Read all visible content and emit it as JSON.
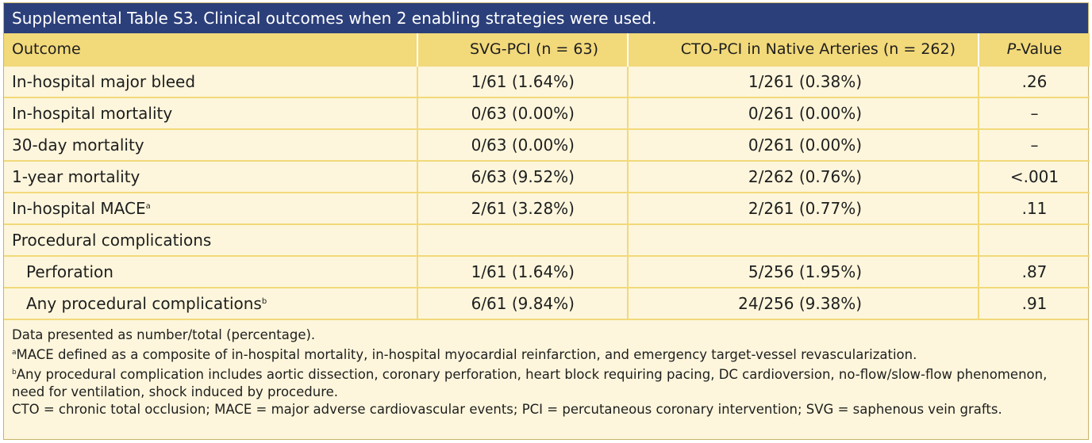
{
  "title": "Supplemental Table S3. Clinical outcomes when 2 enabling strategies were used.",
  "headers": {
    "outcome": "Outcome",
    "svg": "SVG-PCI (n = 63)",
    "cto": "CTO-PCI in Native Arteries (n = 262)",
    "p_italic": "P",
    "p_rest": "-Value"
  },
  "rows": [
    {
      "label": "In-hospital major bleed",
      "sup": "",
      "svg": "1/61 (1.64%)",
      "cto": "1/261 (0.38%)",
      "p": ".26"
    },
    {
      "label": "In-hospital mortality",
      "sup": "",
      "svg": "0/63 (0.00%)",
      "cto": "0/261 (0.00%)",
      "p": "–"
    },
    {
      "label": "30-day mortality",
      "sup": "",
      "svg": "0/63 (0.00%)",
      "cto": "0/261 (0.00%)",
      "p": "–"
    },
    {
      "label": "1-year mortality",
      "sup": "",
      "svg": "6/63 (9.52%)",
      "cto": "2/262 (0.76%)",
      "p": "<.001"
    },
    {
      "label": "In-hospital MACE",
      "sup": "a",
      "svg": "2/61 (3.28%)",
      "cto": "2/261 (0.77%)",
      "p": ".11"
    },
    {
      "label": "Procedural complications",
      "sup": "",
      "svg": "",
      "cto": "",
      "p": ""
    },
    {
      "label": "Perforation",
      "sup": "",
      "svg": "1/61 (1.64%)",
      "cto": "5/256 (1.95%)",
      "p": ".87"
    },
    {
      "label": "Any procedural complications",
      "sup": "b",
      "svg": "6/61 (9.84%)",
      "cto": "24/256 (9.38%)",
      "p": ".91"
    }
  ],
  "notes": {
    "line1": "Data presented as number/total (percentage).",
    "a_mark": "a",
    "a_text": "MACE defined as a composite of in-hospital mortality, in-hospital myocardial reinfarction, and emergency target-vessel revascularization.",
    "b_mark": "b",
    "b_text": "Any procedural complication includes aortic dissection, coronary perforation, heart block requiring pacing, DC cardioversion, no-flow/slow-flow phenomenon, need for ventilation, shock induced by procedure.",
    "abbrev": "CTO = chronic total occlusion; MACE = major adverse cardiovascular events; PCI = percutaneous coronary intervention; SVG = saphenous vein grafts."
  },
  "colors": {
    "title_bar": "#2b3f7a",
    "header_fill": "#f2d97a",
    "body_fill": "#fdf6dc"
  }
}
